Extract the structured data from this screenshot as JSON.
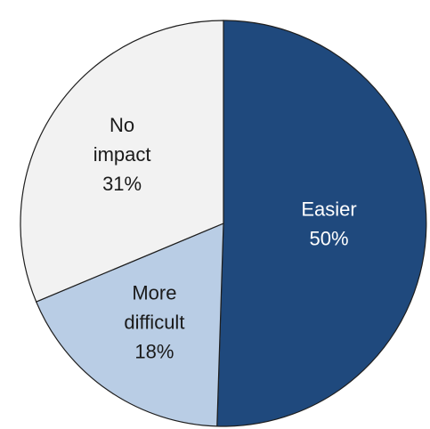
{
  "chart_data": {
    "type": "pie",
    "title": "",
    "slices": [
      {
        "label_lines": [
          "Easier"
        ],
        "value_text": "50%",
        "value": 50,
        "color": "#1f497d",
        "text_color": "#ffffff"
      },
      {
        "label_lines": [
          "More",
          "difficult"
        ],
        "value_text": "18%",
        "value": 18,
        "color": "#b9cde5",
        "text_color": "#1a1a1a"
      },
      {
        "label_lines": [
          "No",
          "impact"
        ],
        "value_text": "31%",
        "value": 31,
        "color": "#f2f2f2",
        "text_color": "#1a1a1a"
      }
    ]
  }
}
